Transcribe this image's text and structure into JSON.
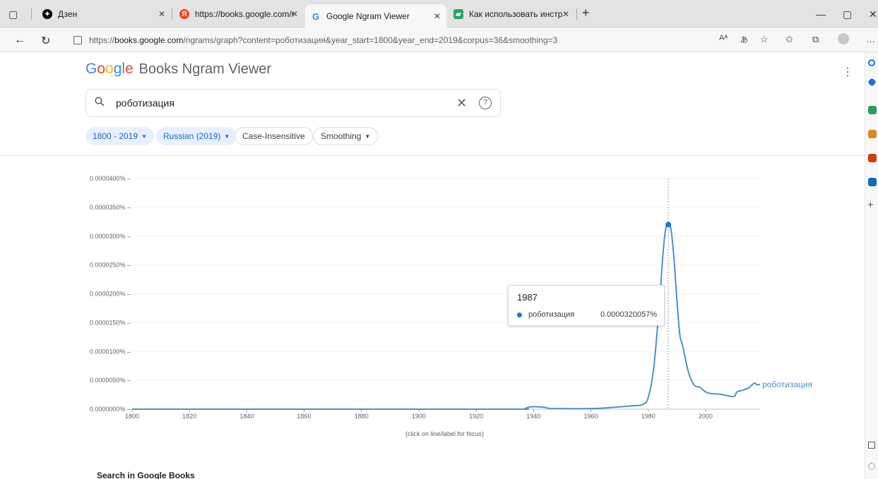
{
  "browser": {
    "tabs": [
      {
        "title": "Дзен",
        "active": false
      },
      {
        "title": "https://books.google.com/ngran",
        "active": false
      },
      {
        "title": "Google Ngram Viewer",
        "active": true
      },
      {
        "title": "Как использовать инструмент г",
        "active": false
      }
    ],
    "url_prefix": "https://",
    "url_host": "books.google.com",
    "url_rest": "/ngrams/graph?content=роботизация&year_start=1800&year_end=2019&corpus=36&smoothing=3",
    "reader_icon_text": "Aᴬ",
    "translate_icon_text": "あ"
  },
  "header": {
    "logo_letters": [
      "G",
      "o",
      "o",
      "g",
      "l",
      "e"
    ],
    "logo_rest": "Books Ngram Viewer"
  },
  "search": {
    "value": "роботизация"
  },
  "filters": {
    "years": "1800 - 2019",
    "corpus": "Russian (2019)",
    "case": "Case-Insensitive",
    "smoothing": "Smoothing"
  },
  "tooltip": {
    "year": "1987",
    "series_name": "роботизация",
    "value": "0.0000320057%"
  },
  "footer": {
    "click_hint": "(click on line/label for focus)",
    "search_in_books": "Search in Google Books"
  },
  "colors": {
    "line": "#4a90d9",
    "accent": "#1a73e8"
  },
  "chart_data": {
    "type": "line",
    "title": "",
    "xlabel": "",
    "ylabel": "",
    "xlim": [
      1800,
      2019
    ],
    "ylim": [
      0,
      4e-05
    ],
    "y_unit": "%",
    "y_ticks": [
      "0.0000000%",
      "0.0000050%",
      "0.0000100%",
      "0.0000150%",
      "0.0000200%",
      "0.0000250%",
      "0.0000300%",
      "0.0000350%",
      "0.0000400%"
    ],
    "x_ticks": [
      "1800",
      "1820",
      "1840",
      "1860",
      "1880",
      "1900",
      "1920",
      "1940",
      "1960",
      "1980",
      "2000"
    ],
    "legend": "end-of-line label",
    "highlight_year": 1987,
    "series": [
      {
        "name": "роботизация",
        "x": [
          1800,
          1900,
          1935,
          1937,
          1939,
          1942,
          1944,
          1946,
          1950,
          1960,
          1965,
          1970,
          1975,
          1978,
          1980,
          1982,
          1984,
          1985,
          1986,
          1987,
          1988,
          1989,
          1990,
          1991,
          1992,
          1994,
          1996,
          1998,
          2000,
          2002,
          2005,
          2008,
          2010,
          2011,
          2013,
          2015,
          2017,
          2018,
          2019
        ],
        "y": [
          0,
          0,
          0,
          1e-07,
          4e-07,
          4e-07,
          3e-07,
          1e-07,
          1e-07,
          1e-07,
          2e-07,
          4e-07,
          6e-07,
          8e-07,
          2e-06,
          7.5e-06,
          1.9e-05,
          2.6e-05,
          3.1e-05,
          3.20057e-05,
          3.1e-05,
          2.6e-05,
          1.9e-05,
          1.3e-05,
          1.1e-05,
          6.5e-06,
          4.2e-06,
          3.8e-06,
          3e-06,
          2.7e-06,
          2.6e-06,
          2.3e-06,
          2.2e-06,
          3e-06,
          3.3e-06,
          3.7e-06,
          4.5e-06,
          4.2e-06,
          4.3e-06
        ]
      }
    ]
  }
}
